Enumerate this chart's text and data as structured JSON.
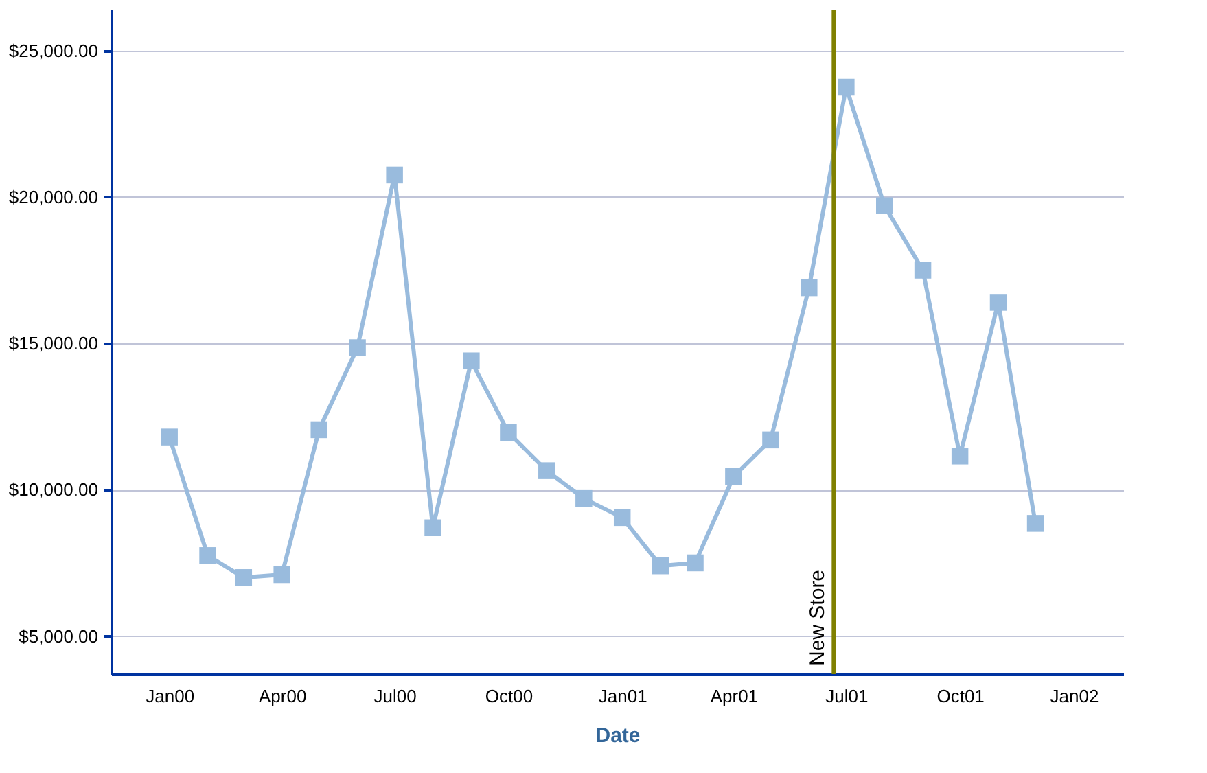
{
  "chart_data": {
    "type": "line",
    "xlabel": "Date",
    "x": [
      "2000-01",
      "2000-02",
      "2000-03",
      "2000-04",
      "2000-05",
      "2000-06",
      "2000-07",
      "2000-08",
      "2000-09",
      "2000-10",
      "2000-11",
      "2000-12",
      "2001-01",
      "2001-02",
      "2001-03",
      "2001-04",
      "2001-05",
      "2001-06",
      "2001-07",
      "2001-08",
      "2001-09",
      "2001-10",
      "2001-11",
      "2001-12"
    ],
    "series": [
      {
        "color": "#99bbdd",
        "values": [
          11800,
          7750,
          7000,
          7100,
          12050,
          14850,
          20750,
          8700,
          14400,
          11950,
          10650,
          9700,
          9050,
          7400,
          7500,
          10450,
          11700,
          16900,
          23750,
          19700,
          17500,
          11150,
          16400,
          8850
        ]
      }
    ],
    "xlim": [
      "1999-11-15",
      "2002-02-10"
    ],
    "xticks": [
      {
        "value": "2000-01",
        "label": "Jan00"
      },
      {
        "value": "2000-04",
        "label": "Apr00"
      },
      {
        "value": "2000-07",
        "label": "Jul00"
      },
      {
        "value": "2000-10",
        "label": "Oct00"
      },
      {
        "value": "2001-01",
        "label": "Jan01"
      },
      {
        "value": "2001-04",
        "label": "Apr01"
      },
      {
        "value": "2001-07",
        "label": "Jul01"
      },
      {
        "value": "2001-10",
        "label": "Oct01"
      },
      {
        "value": "2002-01",
        "label": "Jan02"
      }
    ],
    "ylim": [
      3700,
      26400
    ],
    "yticks": [
      {
        "value": 5000,
        "label": "$5,000.00"
      },
      {
        "value": 10000,
        "label": "$10,000.00"
      },
      {
        "value": 15000,
        "label": "$15,000.00"
      },
      {
        "value": 20000,
        "label": "$20,000.00"
      },
      {
        "value": 25000,
        "label": "$25,000.00"
      }
    ],
    "ref_lines": [
      {
        "axis": "x",
        "value": "2001-06-21",
        "label": "New Store",
        "color": "#808000"
      }
    ],
    "grid": "y",
    "marker": "square",
    "line_style": "solid"
  }
}
